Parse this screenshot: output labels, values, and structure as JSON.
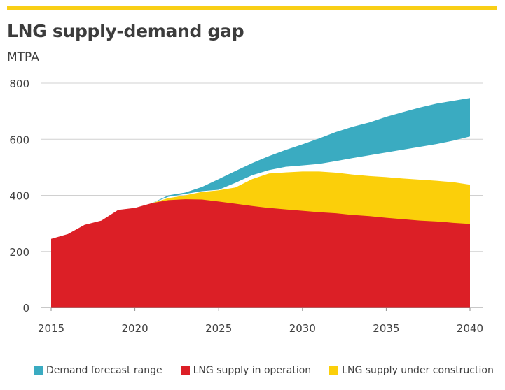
{
  "title": "LNG supply-demand gap",
  "unit": "MTPA",
  "colors": {
    "accent": "#f9cf16",
    "demand": "#3aabc1",
    "operation": "#dc1f26",
    "construction": "#fbcf0a",
    "grid": "#d0d0d0",
    "axis": "#909090"
  },
  "legend": [
    {
      "label": "Demand forecast range",
      "color_key": "demand"
    },
    {
      "label": "LNG supply in operation",
      "color_key": "operation"
    },
    {
      "label": "LNG supply under construction",
      "color_key": "construction"
    }
  ],
  "chart_data": {
    "type": "area",
    "xlim": [
      2015,
      2040
    ],
    "ylim": [
      0,
      800
    ],
    "yticks": [
      0,
      200,
      400,
      600,
      800
    ],
    "xticks": [
      2015,
      2020,
      2025,
      2030,
      2035,
      2040
    ],
    "grid": true,
    "legend_position": "bottom",
    "series": [
      {
        "name": "LNG supply in operation",
        "color_key": "operation",
        "points": [
          [
            2015,
            245
          ],
          [
            2016,
            262
          ],
          [
            2017,
            295
          ],
          [
            2018,
            310
          ],
          [
            2019,
            348
          ],
          [
            2020,
            355
          ],
          [
            2021,
            372
          ],
          [
            2022,
            383
          ],
          [
            2023,
            386
          ],
          [
            2024,
            385
          ],
          [
            2025,
            378
          ],
          [
            2026,
            370
          ],
          [
            2027,
            362
          ],
          [
            2028,
            355
          ],
          [
            2029,
            350
          ],
          [
            2030,
            345
          ],
          [
            2031,
            340
          ],
          [
            2032,
            336
          ],
          [
            2033,
            330
          ],
          [
            2034,
            326
          ],
          [
            2035,
            320
          ],
          [
            2036,
            315
          ],
          [
            2037,
            310
          ],
          [
            2038,
            307
          ],
          [
            2039,
            302
          ],
          [
            2040,
            298
          ]
        ]
      },
      {
        "name": "LNG supply under construction",
        "color_key": "construction",
        "points": [
          [
            2021,
            372
          ],
          [
            2022,
            390
          ],
          [
            2023,
            400
          ],
          [
            2024,
            412
          ],
          [
            2025,
            418
          ],
          [
            2026,
            428
          ],
          [
            2027,
            458
          ],
          [
            2028,
            478
          ],
          [
            2029,
            482
          ],
          [
            2030,
            485
          ],
          [
            2031,
            485
          ],
          [
            2032,
            481
          ],
          [
            2033,
            474
          ],
          [
            2034,
            469
          ],
          [
            2035,
            465
          ],
          [
            2036,
            460
          ],
          [
            2037,
            456
          ],
          [
            2038,
            452
          ],
          [
            2039,
            447
          ],
          [
            2040,
            438
          ]
        ]
      },
      {
        "name": "Demand forecast range",
        "color_key": "demand",
        "lower": [
          [
            2021,
            372
          ],
          [
            2022,
            395
          ],
          [
            2023,
            405
          ],
          [
            2024,
            415
          ],
          [
            2025,
            420
          ],
          [
            2026,
            445
          ],
          [
            2027,
            472
          ],
          [
            2028,
            490
          ],
          [
            2029,
            502
          ],
          [
            2030,
            507
          ],
          [
            2031,
            512
          ],
          [
            2032,
            522
          ],
          [
            2033,
            533
          ],
          [
            2034,
            543
          ],
          [
            2035,
            553
          ],
          [
            2036,
            563
          ],
          [
            2037,
            573
          ],
          [
            2038,
            583
          ],
          [
            2039,
            595
          ],
          [
            2040,
            610
          ]
        ],
        "upper": [
          [
            2021,
            372
          ],
          [
            2022,
            400
          ],
          [
            2023,
            410
          ],
          [
            2024,
            430
          ],
          [
            2025,
            458
          ],
          [
            2026,
            487
          ],
          [
            2027,
            515
          ],
          [
            2028,
            540
          ],
          [
            2029,
            562
          ],
          [
            2030,
            582
          ],
          [
            2031,
            603
          ],
          [
            2032,
            626
          ],
          [
            2033,
            645
          ],
          [
            2034,
            660
          ],
          [
            2035,
            680
          ],
          [
            2036,
            697
          ],
          [
            2037,
            713
          ],
          [
            2038,
            727
          ],
          [
            2039,
            737
          ],
          [
            2040,
            747
          ]
        ]
      }
    ]
  }
}
